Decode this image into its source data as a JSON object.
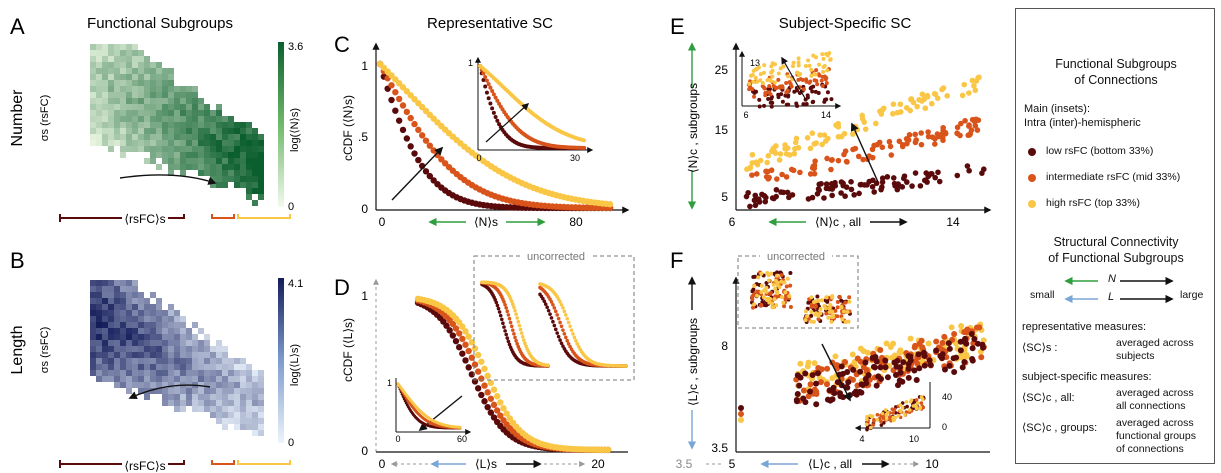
{
  "colors": {
    "low": "#5a0a0a",
    "mid": "#d9541b",
    "high": "#f9c646",
    "green": "#2e9e3e",
    "blue": "#7aa6d6",
    "heat_green": "#0b5e2e",
    "heat_blue": "#1d2766"
  },
  "panels": {
    "A": {
      "letter": "A",
      "title": "Functional Subgroups",
      "row_label": "Number",
      "ylabel": "σs (rsFC)",
      "xlabel": "⟨rsFC⟩s",
      "cbar_max": "3.6",
      "cbar_min": "0",
      "cbar_label": "log(⟨N⟩s)"
    },
    "B": {
      "letter": "B",
      "row_label": "Length",
      "ylabel": "σs (rsFC)",
      "xlabel": "⟨rsFC⟩s",
      "cbar_max": "4.1",
      "cbar_min": "0",
      "cbar_label": "log(⟨L⟩s)"
    },
    "C": {
      "letter": "C",
      "title": "Representative SC",
      "ylabel": "cCDF (⟨N⟩s)",
      "xlabel": "⟨N⟩s",
      "ytick_top": "1",
      "ytick_mid": ".5",
      "ytick_bot": "0",
      "xtick_0": "0",
      "xtick_80": "80",
      "inset_y1": "1",
      "inset_x0": "0",
      "inset_x30": "30"
    },
    "D": {
      "letter": "D",
      "ylabel": "cCDF (⟨L⟩s)",
      "xlabel": "⟨L⟩s",
      "ytick_top": "1",
      "ytick_bot": "0",
      "xtick_0": "0",
      "xtick_20": "20",
      "uncorrected": "uncorrected",
      "inset_y1": "1",
      "inset_x0": "0",
      "inset_x60": "60"
    },
    "E": {
      "letter": "E",
      "title": "Subject-Specific SC",
      "ylabel": "⟨N⟩c , subgroups",
      "xlabel": "⟨N⟩c , all",
      "ytick_25": "25",
      "ytick_15": "15",
      "ytick_5": "5",
      "xtick_6": "6",
      "xtick_14": "14",
      "inset_y13": "13",
      "inset_x6": "6",
      "inset_x14": "14"
    },
    "F": {
      "letter": "F",
      "ylabel": "⟨L⟩c , subgroups",
      "xlabel": "⟨L⟩c , all",
      "ytick_8": "8",
      "ytick_35": "3.5",
      "xtick_35": "3.5",
      "xtick_5": "5",
      "xtick_10": "10",
      "uncorrected": "uncorrected",
      "inset_y40": "40",
      "inset_y0": "0",
      "inset_x4": "4",
      "inset_x10": "10"
    }
  },
  "legend": {
    "title_line1": "Functional Subgroups",
    "title_line2": "of Connections",
    "main_line1": "Main (insets):",
    "main_line2": "Intra (inter)-hemispheric",
    "items": [
      {
        "label": "low rsFC  (bottom 33%)"
      },
      {
        "label": "intermediate rsFC  (mid 33%)"
      },
      {
        "label": "high rsFC  (top 33%)"
      }
    ],
    "sc_title_line1": "Structural Connectivity",
    "sc_title_line2": "of Functional Subgroups",
    "small": "small",
    "large": "large",
    "n_symbol": "N",
    "l_symbol": "L",
    "rep_heading": "representative measures:",
    "rep_symbol": "⟨SC⟩s :",
    "rep_desc_1": "averaged across",
    "rep_desc_2": "subjects",
    "subj_heading": "subject-specific measures:",
    "all_symbol": "⟨SC⟩c , all:",
    "all_desc_1": "averaged across",
    "all_desc_2": "all connections",
    "groups_symbol": "⟨SC⟩c , groups:",
    "groups_desc_1": "averaged across",
    "groups_desc_2": "functional groups",
    "groups_desc_3": "of connections"
  }
}
